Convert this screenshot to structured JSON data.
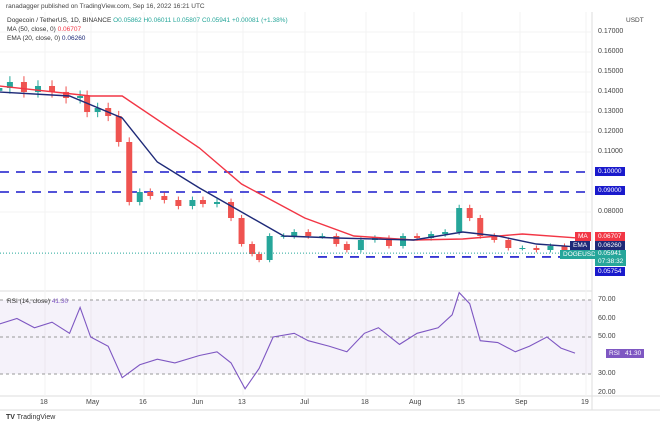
{
  "header": {
    "published": "ranadagger published on TradingView.com, Sep 16, 2022 16:21 UTC"
  },
  "legend": {
    "symbol": "Dogecoin / TetherUS, 1D, BINANCE",
    "o": "O0.05862",
    "h": "H0.06011",
    "l": "L0.05807",
    "c": "C0.05941",
    "chg": "+0.00081 (+1.38%)",
    "ma_label": "MA (50, close, 0)",
    "ma_value": "0.06707",
    "ema_label": "EMA (20, close, 0)",
    "ema_value": "0.06260",
    "rsi_label": "RSI (14, close)",
    "rsi_value": "41.30"
  },
  "axis": {
    "currency": "USDT",
    "price_ticks": [
      "0.17000",
      "0.16000",
      "0.15000",
      "0.14000",
      "0.13000",
      "0.12000",
      "0.11000",
      "0.08000"
    ],
    "rsi_ticks": [
      "70.00",
      "60.00",
      "50.00",
      "30.00",
      "20.00"
    ],
    "time_ticks": [
      "18",
      "May",
      "16",
      "Jun",
      "13",
      "Jul",
      "18",
      "Aug",
      "15",
      "Sep",
      "19"
    ]
  },
  "tags": {
    "level_100": "0.10000",
    "level_090": "0.09000",
    "ma": "MA",
    "ma_val": "0.06707",
    "ema": "EMA",
    "ema_val": "0.06260",
    "sym": "DOGEUSDT",
    "price": "0.05941",
    "countdown": "07:38:32",
    "support": "0.05754",
    "rsi": "RSI",
    "rsi_val": "41.30"
  },
  "footer": {
    "brand": "TradingView"
  },
  "colors": {
    "up": "#26a69a",
    "down": "#ef5350",
    "ma": "#f23645",
    "ema": "#1e2a78",
    "rsi": "#7e57c2",
    "level": "#1a1acc"
  },
  "chart_data": {
    "type": "candlestick",
    "title": "Dogecoin / TetherUS, 1D, BINANCE",
    "ylabel": "USDT",
    "ylim": [
      0.05,
      0.175
    ],
    "levels": [
      0.1,
      0.09,
      0.05754
    ],
    "dates": [
      "2022-04-05",
      "2022-04-08",
      "2022-04-12",
      "2022-04-16",
      "2022-04-20",
      "2022-04-24",
      "2022-04-28",
      "2022-04-30",
      "2022-05-03",
      "2022-05-06",
      "2022-05-09",
      "2022-05-12",
      "2022-05-15",
      "2022-05-18",
      "2022-05-22",
      "2022-05-26",
      "2022-05-30",
      "2022-06-02",
      "2022-06-06",
      "2022-06-10",
      "2022-06-13",
      "2022-06-16",
      "2022-06-18",
      "2022-06-21",
      "2022-06-25",
      "2022-06-28",
      "2022-07-02",
      "2022-07-06",
      "2022-07-10",
      "2022-07-13",
      "2022-07-17",
      "2022-07-21",
      "2022-07-25",
      "2022-07-29",
      "2022-08-02",
      "2022-08-06",
      "2022-08-10",
      "2022-08-14",
      "2022-08-17",
      "2022-08-20",
      "2022-08-24",
      "2022-08-28",
      "2022-09-01",
      "2022-09-05",
      "2022-09-09",
      "2022-09-13",
      "2022-09-16"
    ],
    "close": [
      0.142,
      0.145,
      0.14,
      0.143,
      0.14,
      0.137,
      0.138,
      0.13,
      0.132,
      0.128,
      0.115,
      0.085,
      0.09,
      0.088,
      0.086,
      0.083,
      0.086,
      0.084,
      0.085,
      0.077,
      0.064,
      0.059,
      0.056,
      0.068,
      0.068,
      0.07,
      0.068,
      0.068,
      0.064,
      0.061,
      0.066,
      0.067,
      0.063,
      0.068,
      0.067,
      0.069,
      0.07,
      0.082,
      0.077,
      0.068,
      0.066,
      0.062,
      0.062,
      0.061,
      0.063,
      0.061,
      0.05941
    ],
    "ma50": [
      [
        "2022-04-05",
        0.143
      ],
      [
        "2022-05-01",
        0.138
      ],
      [
        "2022-05-10",
        0.138
      ],
      [
        "2022-06-01",
        0.112
      ],
      [
        "2022-06-13",
        0.094
      ],
      [
        "2022-07-01",
        0.077
      ],
      [
        "2022-07-15",
        0.068
      ],
      [
        "2022-08-01",
        0.066
      ],
      [
        "2022-08-15",
        0.0665
      ],
      [
        "2022-09-01",
        0.069
      ],
      [
        "2022-09-16",
        0.06707
      ]
    ],
    "ema20": [
      [
        "2022-04-05",
        0.14
      ],
      [
        "2022-04-25",
        0.138
      ],
      [
        "2022-05-10",
        0.127
      ],
      [
        "2022-05-20",
        0.105
      ],
      [
        "2022-06-01",
        0.092
      ],
      [
        "2022-06-13",
        0.08
      ],
      [
        "2022-06-25",
        0.068
      ],
      [
        "2022-07-10",
        0.067
      ],
      [
        "2022-08-01",
        0.066
      ],
      [
        "2022-08-15",
        0.07
      ],
      [
        "2022-08-25",
        0.068
      ],
      [
        "2022-09-05",
        0.064
      ],
      [
        "2022-09-16",
        0.0626
      ]
    ],
    "rsi": [
      [
        "2022-04-05",
        57
      ],
      [
        "2022-04-10",
        60
      ],
      [
        "2022-04-15",
        55
      ],
      [
        "2022-04-20",
        58
      ],
      [
        "2022-04-25",
        52
      ],
      [
        "2022-04-28",
        66
      ],
      [
        "2022-05-01",
        50
      ],
      [
        "2022-05-06",
        45
      ],
      [
        "2022-05-10",
        28
      ],
      [
        "2022-05-15",
        35
      ],
      [
        "2022-05-20",
        38
      ],
      [
        "2022-05-25",
        36
      ],
      [
        "2022-06-01",
        40
      ],
      [
        "2022-06-06",
        42
      ],
      [
        "2022-06-10",
        36
      ],
      [
        "2022-06-14",
        22
      ],
      [
        "2022-06-18",
        33
      ],
      [
        "2022-06-22",
        50
      ],
      [
        "2022-06-28",
        52
      ],
      [
        "2022-07-02",
        48
      ],
      [
        "2022-07-08",
        45
      ],
      [
        "2022-07-13",
        42
      ],
      [
        "2022-07-18",
        52
      ],
      [
        "2022-07-22",
        55
      ],
      [
        "2022-07-28",
        46
      ],
      [
        "2022-08-02",
        52
      ],
      [
        "2022-08-08",
        55
      ],
      [
        "2022-08-12",
        62
      ],
      [
        "2022-08-14",
        74
      ],
      [
        "2022-08-17",
        68
      ],
      [
        "2022-08-20",
        48
      ],
      [
        "2022-08-25",
        47
      ],
      [
        "2022-08-30",
        42
      ],
      [
        "2022-09-03",
        45
      ],
      [
        "2022-09-08",
        50
      ],
      [
        "2022-09-12",
        44
      ],
      [
        "2022-09-16",
        41.3
      ]
    ],
    "rsi_ylim": [
      15,
      80
    ]
  }
}
